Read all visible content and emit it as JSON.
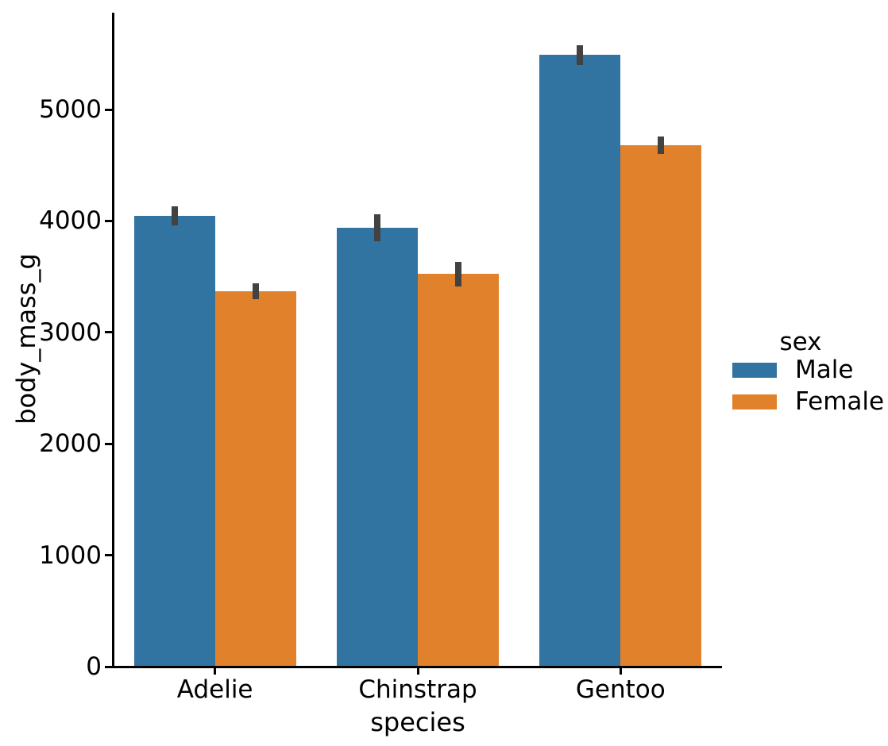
{
  "chart_data": {
    "type": "bar",
    "title": "",
    "xlabel": "species",
    "ylabel": "body_mass_g",
    "categories": [
      "Adelie",
      "Chinstrap",
      "Gentoo"
    ],
    "series": [
      {
        "name": "Male",
        "color": "#3274a1",
        "values": [
          4045,
          3940,
          5490
        ],
        "ci": [
          [
            3960,
            4130
          ],
          [
            3820,
            4060
          ],
          [
            5400,
            5580
          ]
        ]
      },
      {
        "name": "Female",
        "color": "#e1812c",
        "values": [
          3370,
          3525,
          4680
        ],
        "ci": [
          [
            3300,
            3440
          ],
          [
            3415,
            3635
          ],
          [
            4600,
            4760
          ]
        ]
      }
    ],
    "yticks": [
      0,
      1000,
      2000,
      3000,
      4000,
      5000
    ],
    "ylim": [
      0,
      5870
    ],
    "grid": false,
    "error_bar_color": "#424242",
    "legend": {
      "title": "sex",
      "entries": [
        "Male",
        "Female"
      ],
      "position": "center-right"
    }
  }
}
